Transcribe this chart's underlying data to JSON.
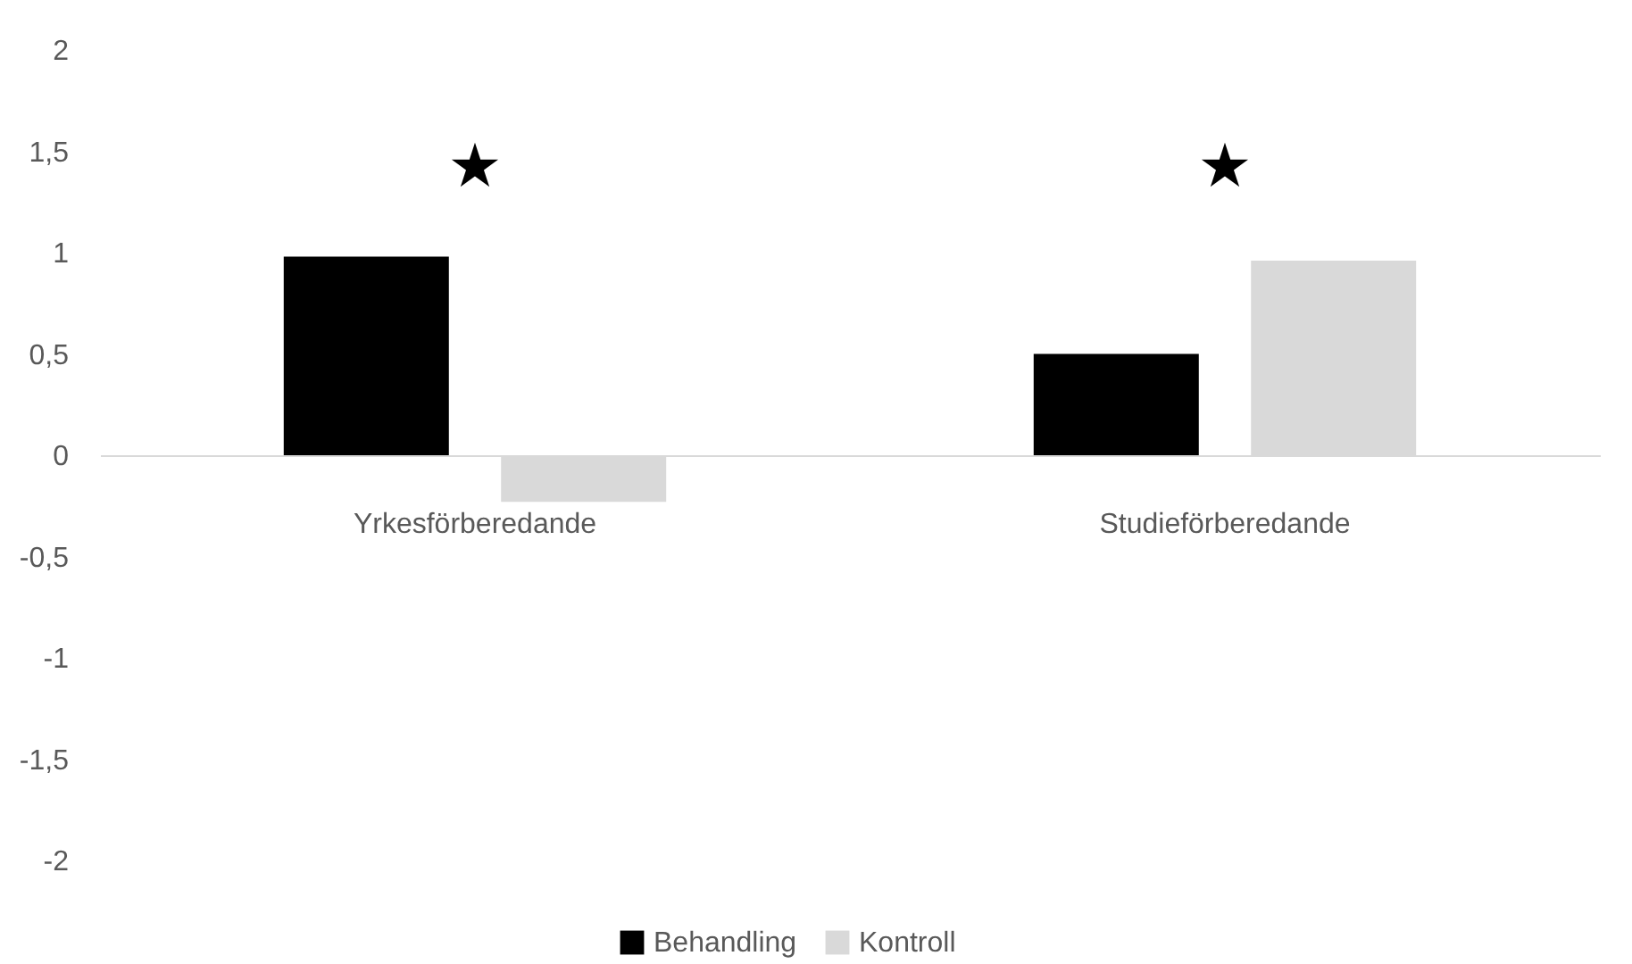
{
  "chart_data": {
    "type": "bar",
    "categories": [
      "Yrkesförberedande",
      "Studieförberedande"
    ],
    "series": [
      {
        "name": "Behandling",
        "color": "#000000",
        "values": [
          0.98,
          0.5
        ]
      },
      {
        "name": "Kontroll",
        "color": "#d9d9d9",
        "values": [
          -0.23,
          0.96
        ]
      }
    ],
    "ylim": [
      -2,
      2
    ],
    "yticks": [
      -2,
      {
        "value": -1.5,
        "label": "-1,5"
      },
      -1,
      {
        "value": -0.5,
        "label": "-0,5"
      },
      0,
      {
        "value": 0.5,
        "label": "0,5"
      },
      1,
      {
        "value": 1.5,
        "label": "1,5"
      },
      2
    ],
    "grid": false,
    "legend": "bottom",
    "annotations": [
      "★",
      "★"
    ]
  }
}
